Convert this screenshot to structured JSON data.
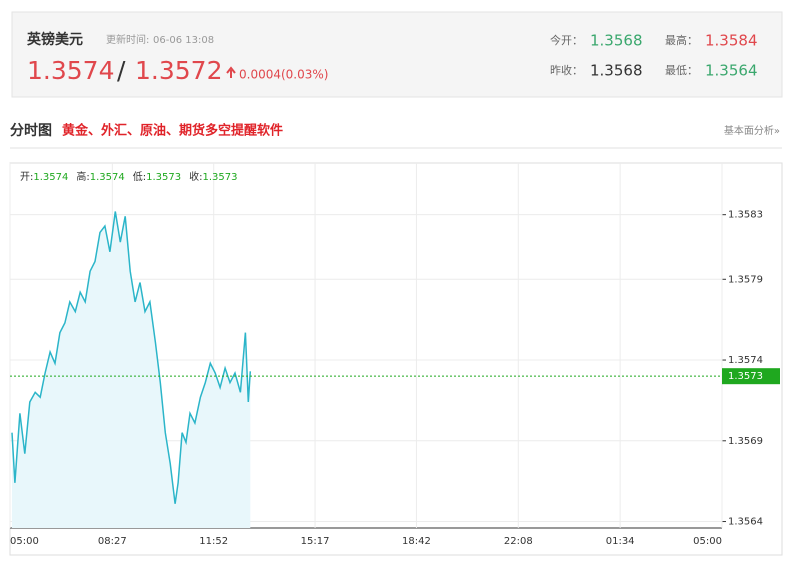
{
  "header": {
    "name": "英镑美元",
    "update_label": "更新时间:",
    "update_time": "06-06 13:08",
    "bid": "1.3574",
    "separator": "/",
    "ask": "1.3572",
    "change": "0.0004(0.03%)",
    "stats": [
      {
        "label": "今开：",
        "value": "1.3568",
        "color": "#3aa76d"
      },
      {
        "label": "最高：",
        "value": "1.3584",
        "color": "#e0474c"
      },
      {
        "label": "昨收：",
        "value": "1.3568",
        "color": "#333333"
      },
      {
        "label": "最低：",
        "value": "1.3564",
        "color": "#3aa76d"
      }
    ]
  },
  "section": {
    "title": "分时图",
    "promo": "黄金、外汇、原油、期货多空提醒软件",
    "link": "基本面分析»"
  },
  "chart_data": {
    "type": "line",
    "color": "#2bb5c9",
    "fill": "#e8f7fb",
    "grid": true,
    "ohlc": [
      {
        "label": "开:",
        "value": 1.3574
      },
      {
        "label": "高:",
        "value": 1.3574
      },
      {
        "label": "低:",
        "value": 1.3573
      },
      {
        "label": "收:",
        "value": 1.3573
      }
    ],
    "current": 1.3573,
    "current_color": "#1fa81f",
    "xlim": [
      0,
      1440
    ],
    "xticks": [
      {
        "value": 0,
        "label": "05:00"
      },
      {
        "value": 207,
        "label": "08:27"
      },
      {
        "value": 412,
        "label": "11:52"
      },
      {
        "value": 617,
        "label": "15:17"
      },
      {
        "value": 822,
        "label": "18:42"
      },
      {
        "value": 1028,
        "label": "22:08"
      },
      {
        "value": 1234,
        "label": "01:34"
      },
      {
        "value": 1440,
        "label": "05:00"
      }
    ],
    "ylim": [
      1.35636,
      1.35862
    ],
    "yticks": [
      1.3564,
      1.3569,
      1.3574,
      1.3579,
      1.3583
    ],
    "x": [
      4,
      10,
      20,
      30,
      40,
      51,
      61,
      71,
      81,
      91,
      101,
      111,
      121,
      132,
      142,
      152,
      162,
      172,
      182,
      192,
      202,
      213,
      223,
      233,
      243,
      253,
      263,
      273,
      283,
      294,
      304,
      314,
      324,
      334,
      340,
      348,
      356,
      364,
      374,
      385,
      395,
      405,
      415,
      425,
      435,
      445,
      455,
      466,
      476,
      482,
      486
    ],
    "values": [
      1.35695,
      1.35664,
      1.35707,
      1.35682,
      1.35714,
      1.3572,
      1.35717,
      1.35732,
      1.35745,
      1.35738,
      1.35757,
      1.35763,
      1.35776,
      1.3577,
      1.35782,
      1.35776,
      1.35795,
      1.35801,
      1.35819,
      1.35823,
      1.35807,
      1.35832,
      1.35813,
      1.35829,
      1.35795,
      1.35776,
      1.35788,
      1.3577,
      1.35776,
      1.35751,
      1.35726,
      1.35695,
      1.35676,
      1.35651,
      1.35664,
      1.35695,
      1.35689,
      1.35707,
      1.35701,
      1.35717,
      1.35726,
      1.35738,
      1.35732,
      1.35723,
      1.35735,
      1.35726,
      1.35732,
      1.3572,
      1.35757,
      1.35714,
      1.35733
    ]
  }
}
